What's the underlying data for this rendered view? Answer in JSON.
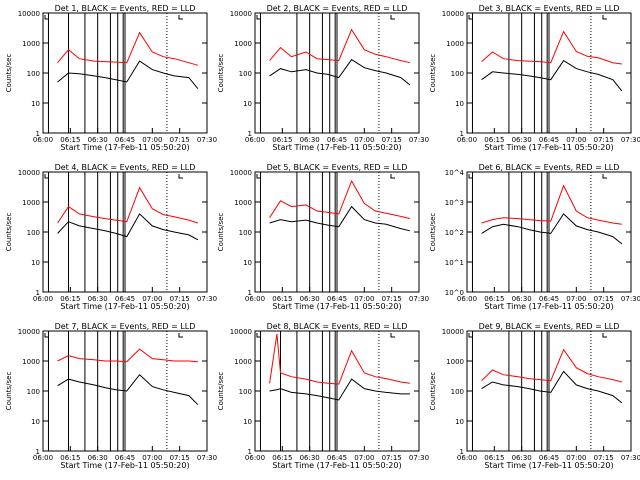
{
  "chart_data": [
    {
      "type": "line",
      "title": "Det 1, BLACK = Events, RED = LLD",
      "xlabel": "Start Time (17-Feb-11 05:50:20)",
      "ylabel": "Counts/sec",
      "xlim": [
        "06:00",
        "07:30"
      ],
      "ylim": [
        1,
        10000
      ],
      "yscale": "log",
      "x": [
        "06:03",
        "06:08",
        "06:14",
        "06:20",
        "06:28",
        "06:34",
        "06:40",
        "06:46",
        "06:53",
        "07:00",
        "07:06",
        "07:12",
        "07:20",
        "07:25"
      ],
      "series": [
        {
          "name": "BLACK = Events",
          "color": "#000000",
          "values": [
            null,
            50,
            100,
            95,
            80,
            70,
            60,
            50,
            250,
            130,
            100,
            80,
            70,
            30
          ]
        },
        {
          "name": "RED = LLD",
          "color": "#ff0000",
          "values": [
            null,
            220,
            600,
            300,
            250,
            240,
            230,
            220,
            2200,
            500,
            350,
            300,
            220,
            180
          ]
        }
      ],
      "event_lines": [
        "06:03",
        "06:14",
        "06:23",
        "06:30",
        "06:37",
        "06:41",
        "06:44",
        "06:45",
        "07:08"
      ],
      "xticks": [
        "06:00",
        "06:15",
        "06:30",
        "06:45",
        "07:00",
        "07:15",
        "07:30"
      ],
      "yticks": [
        "1",
        "10",
        "100",
        "1000",
        "10000"
      ]
    },
    {
      "type": "line",
      "title": "Det 2, BLACK = Events, RED = LLD",
      "xlabel": "Start Time (17-Feb-11 05:50:20)",
      "ylabel": "Counts/sec",
      "xlim": [
        "06:00",
        "07:30"
      ],
      "ylim": [
        1,
        10000
      ],
      "yscale": "log",
      "x": [
        "06:03",
        "06:08",
        "06:14",
        "06:20",
        "06:28",
        "06:34",
        "06:40",
        "06:46",
        "06:53",
        "07:00",
        "07:06",
        "07:12",
        "07:20",
        "07:25"
      ],
      "series": [
        {
          "name": "BLACK = Events",
          "color": "#000000",
          "values": [
            null,
            80,
            140,
            110,
            130,
            100,
            90,
            70,
            280,
            150,
            120,
            100,
            70,
            40
          ]
        },
        {
          "name": "RED = LLD",
          "color": "#ff0000",
          "values": [
            null,
            260,
            700,
            350,
            500,
            300,
            280,
            260,
            2800,
            600,
            420,
            350,
            260,
            220
          ]
        }
      ],
      "event_lines": [
        "06:03",
        "06:23",
        "06:30",
        "06:37",
        "06:41",
        "06:44",
        "06:45",
        "07:08"
      ],
      "xticks": [
        "06:00",
        "06:15",
        "06:30",
        "06:45",
        "07:00",
        "07:15",
        "07:30"
      ],
      "yticks": [
        "1",
        "10",
        "100",
        "1000",
        "10000"
      ]
    },
    {
      "type": "line",
      "title": "Det 3, BLACK = Events, RED = LLD",
      "xlabel": "Start Time (17-Feb-11 05:50:20)",
      "ylabel": "Counts/sec",
      "xlim": [
        "06:00",
        "07:30"
      ],
      "ylim": [
        1,
        10000
      ],
      "yscale": "log",
      "x": [
        "06:03",
        "06:08",
        "06:14",
        "06:20",
        "06:28",
        "06:34",
        "06:40",
        "06:46",
        "06:53",
        "07:00",
        "07:06",
        "07:12",
        "07:20",
        "07:25"
      ],
      "series": [
        {
          "name": "BLACK = Events",
          "color": "#000000",
          "values": [
            null,
            60,
            110,
            100,
            90,
            80,
            70,
            60,
            260,
            140,
            110,
            90,
            60,
            25
          ]
        },
        {
          "name": "RED = LLD",
          "color": "#ff0000",
          "values": [
            null,
            240,
            500,
            300,
            260,
            250,
            240,
            220,
            2400,
            520,
            360,
            320,
            220,
            200
          ]
        }
      ],
      "event_lines": [
        "06:03",
        "06:23",
        "06:30",
        "06:37",
        "06:41",
        "06:44",
        "06:45",
        "07:08"
      ],
      "xticks": [
        "06:00",
        "06:15",
        "06:30",
        "06:45",
        "07:00",
        "07:15",
        "07:30"
      ],
      "yticks": [
        "1",
        "10",
        "100",
        "1000",
        "10000"
      ]
    },
    {
      "type": "line",
      "title": "Det 4, BLACK = Events, RED = LLD",
      "xlabel": "Start Time (17-Feb-11 05:50:20)",
      "ylabel": "Counts/sec",
      "xlim": [
        "06:00",
        "07:30"
      ],
      "ylim": [
        1,
        10000
      ],
      "yscale": "log",
      "x": [
        "06:03",
        "06:08",
        "06:14",
        "06:20",
        "06:28",
        "06:34",
        "06:40",
        "06:46",
        "06:53",
        "07:00",
        "07:06",
        "07:12",
        "07:20",
        "07:25"
      ],
      "series": [
        {
          "name": "BLACK = Events",
          "color": "#000000",
          "values": [
            null,
            90,
            220,
            160,
            130,
            110,
            90,
            70,
            400,
            160,
            120,
            100,
            80,
            55
          ]
        },
        {
          "name": "RED = LLD",
          "color": "#ff0000",
          "values": [
            null,
            200,
            700,
            400,
            320,
            280,
            250,
            220,
            3000,
            600,
            380,
            320,
            250,
            200
          ]
        }
      ],
      "event_lines": [
        "06:03",
        "06:14",
        "06:23",
        "06:30",
        "06:37",
        "06:41",
        "06:44",
        "06:45",
        "07:08"
      ],
      "xticks": [
        "06:00",
        "06:15",
        "06:30",
        "06:45",
        "07:00",
        "07:15",
        "07:30"
      ],
      "yticks": [
        "1",
        "10",
        "100",
        "1000",
        "10000"
      ]
    },
    {
      "type": "line",
      "title": "Det 5, BLACK = Events, RED = LLD",
      "xlabel": "Start Time (17-Feb-11 05:50:20)",
      "ylabel": "Counts/sec",
      "xlim": [
        "06:00",
        "07:30"
      ],
      "ylim": [
        1,
        10000
      ],
      "yscale": "log",
      "x": [
        "06:03",
        "06:08",
        "06:14",
        "06:20",
        "06:28",
        "06:34",
        "06:40",
        "06:46",
        "06:53",
        "07:00",
        "07:06",
        "07:12",
        "07:20",
        "07:25"
      ],
      "series": [
        {
          "name": "BLACK = Events",
          "color": "#000000",
          "values": [
            null,
            200,
            260,
            220,
            250,
            200,
            170,
            150,
            700,
            260,
            200,
            180,
            130,
            110
          ]
        },
        {
          "name": "RED = LLD",
          "color": "#ff0000",
          "values": [
            null,
            300,
            1100,
            700,
            800,
            500,
            450,
            400,
            5000,
            900,
            500,
            420,
            330,
            280
          ]
        }
      ],
      "event_lines": [
        "06:03",
        "06:23",
        "06:30",
        "06:37",
        "06:41",
        "06:44",
        "06:45",
        "07:08"
      ],
      "xticks": [
        "06:00",
        "06:15",
        "06:30",
        "06:45",
        "07:00",
        "07:15",
        "07:30"
      ],
      "yticks": [
        "1",
        "10",
        "100",
        "1000",
        "10000"
      ]
    },
    {
      "type": "line",
      "title": "Det 6, BLACK = Events, RED = LLD",
      "xlabel": "Start Time (17-Feb-11 05:50:20)",
      "ylabel": "Counts/sec",
      "xlim": [
        "06:00",
        "07:30"
      ],
      "ylim": [
        1,
        10000
      ],
      "yscale": "log",
      "x": [
        "06:03",
        "06:08",
        "06:14",
        "06:20",
        "06:28",
        "06:34",
        "06:40",
        "06:46",
        "06:53",
        "07:00",
        "07:06",
        "07:12",
        "07:20",
        "07:25"
      ],
      "series": [
        {
          "name": "BLACK = Events",
          "color": "#000000",
          "values": [
            null,
            90,
            150,
            180,
            150,
            120,
            100,
            90,
            400,
            160,
            120,
            100,
            70,
            40
          ]
        },
        {
          "name": "RED = LLD",
          "color": "#ff0000",
          "values": [
            null,
            200,
            260,
            300,
            280,
            260,
            240,
            230,
            3500,
            500,
            300,
            250,
            200,
            180
          ]
        }
      ],
      "event_lines": [
        "06:03",
        "06:23",
        "06:30",
        "06:37",
        "06:41",
        "06:44",
        "06:45",
        "07:08"
      ],
      "xticks": [
        "06:00",
        "06:15",
        "06:30",
        "06:45",
        "07:00",
        "07:15",
        "07:30"
      ],
      "yticks": [
        "10^0",
        "10^1",
        "10^2",
        "10^3",
        "10^4"
      ]
    },
    {
      "type": "line",
      "title": "Det 7, BLACK = Events, RED = LLD",
      "xlabel": "Start Time (17-Feb-11 05:50:20)",
      "ylabel": "Counts/sec",
      "xlim": [
        "06:00",
        "07:30"
      ],
      "ylim": [
        1,
        10000
      ],
      "yscale": "log",
      "x": [
        "06:03",
        "06:08",
        "06:14",
        "06:20",
        "06:28",
        "06:34",
        "06:40",
        "06:46",
        "06:53",
        "07:00",
        "07:06",
        "07:12",
        "07:20",
        "07:25"
      ],
      "series": [
        {
          "name": "BLACK = Events",
          "color": "#000000",
          "values": [
            null,
            150,
            250,
            200,
            160,
            130,
            110,
            100,
            350,
            140,
            110,
            90,
            70,
            35
          ]
        },
        {
          "name": "RED = LLD",
          "color": "#ff0000",
          "values": [
            null,
            1000,
            1500,
            1200,
            1100,
            1000,
            1000,
            950,
            2500,
            1200,
            1100,
            1000,
            1000,
            950
          ]
        }
      ],
      "event_lines": [
        "06:03",
        "06:14",
        "06:23",
        "06:30",
        "06:37",
        "06:41",
        "06:44",
        "06:45",
        "07:08"
      ],
      "xticks": [
        "06:00",
        "06:15",
        "06:30",
        "06:45",
        "07:00",
        "07:15",
        "07:30"
      ],
      "yticks": [
        "1",
        "10",
        "100",
        "1000",
        "10000"
      ]
    },
    {
      "type": "line",
      "title": "Det 8, BLACK = Events, RED = LLD",
      "xlabel": "Start Time (17-Feb-11 05:50:20)",
      "ylabel": "Counts/sec",
      "xlim": [
        "06:00",
        "07:30"
      ],
      "ylim": [
        1,
        10000
      ],
      "yscale": "log",
      "x": [
        "06:03",
        "06:08",
        "06:12",
        "06:14",
        "06:20",
        "06:28",
        "06:34",
        "06:40",
        "06:46",
        "06:53",
        "07:00",
        "07:06",
        "07:12",
        "07:20",
        "07:25"
      ],
      "series": [
        {
          "name": "BLACK = Events",
          "color": "#000000",
          "values": [
            null,
            100,
            110,
            120,
            90,
            80,
            70,
            60,
            50,
            250,
            120,
            100,
            90,
            80,
            80
          ]
        },
        {
          "name": "RED = LLD",
          "color": "#ff0000",
          "values": [
            null,
            180,
            8000,
            400,
            300,
            250,
            200,
            180,
            170,
            2200,
            400,
            300,
            260,
            200,
            180
          ]
        }
      ],
      "event_lines": [
        "06:03",
        "06:14",
        "06:23",
        "06:30",
        "06:37",
        "06:41",
        "06:44",
        "06:45",
        "07:08"
      ],
      "xticks": [
        "06:00",
        "06:15",
        "06:30",
        "06:45",
        "07:00",
        "07:15",
        "07:30"
      ],
      "yticks": [
        "1",
        "10",
        "100",
        "1000",
        "10000"
      ]
    },
    {
      "type": "line",
      "title": "Det 9, BLACK = Events, RED = LLD",
      "xlabel": "Start Time (17-Feb-11 05:50:20)",
      "ylabel": "Counts/sec",
      "xlim": [
        "06:00",
        "07:30"
      ],
      "ylim": [
        1,
        10000
      ],
      "yscale": "log",
      "x": [
        "06:03",
        "06:08",
        "06:14",
        "06:20",
        "06:28",
        "06:34",
        "06:40",
        "06:46",
        "06:53",
        "07:00",
        "07:06",
        "07:12",
        "07:20",
        "07:25"
      ],
      "series": [
        {
          "name": "BLACK = Events",
          "color": "#000000",
          "values": [
            null,
            120,
            200,
            160,
            140,
            120,
            100,
            90,
            450,
            160,
            120,
            100,
            70,
            40
          ]
        },
        {
          "name": "RED = LLD",
          "color": "#ff0000",
          "values": [
            null,
            220,
            500,
            350,
            300,
            260,
            240,
            220,
            2400,
            600,
            380,
            300,
            240,
            200
          ]
        }
      ],
      "event_lines": [
        "06:03",
        "06:23",
        "06:30",
        "06:37",
        "06:41",
        "06:44",
        "06:45",
        "07:08"
      ],
      "xticks": [
        "06:00",
        "06:15",
        "06:30",
        "06:45",
        "07:00",
        "07:15",
        "07:30"
      ],
      "yticks": [
        "1",
        "10",
        "100",
        "1000",
        "10000"
      ]
    }
  ]
}
